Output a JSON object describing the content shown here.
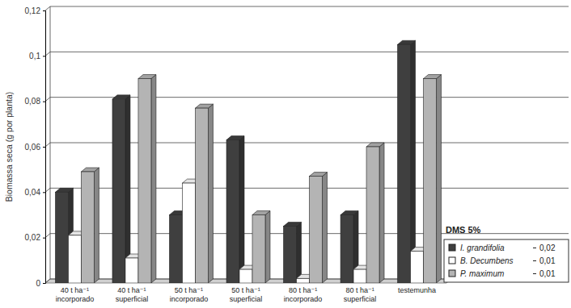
{
  "chart_data": {
    "type": "bar",
    "y_label": "Biomassa seca (g por planta)",
    "categories": [
      "40 t ha⁻¹ incorporado",
      "40 t ha⁻¹ superficial",
      "50 t ha⁻¹ incorporado",
      "50 t ha⁻¹ superficial",
      "80 t ha⁻¹ incorporado",
      "80 t ha⁻¹ superficial",
      "testemunha"
    ],
    "series": [
      {
        "name": "I. grandifolia",
        "color": "#3f3f3f",
        "values": [
          0.04,
          0.081,
          0.03,
          0.063,
          0.025,
          0.03,
          0.105
        ],
        "dms": 0.02,
        "dms_label": "0,02"
      },
      {
        "name": "B. Decumbens",
        "color": "#ffffff",
        "values": [
          0.021,
          0.011,
          0.044,
          0.006,
          0.002,
          0.006,
          0.014
        ],
        "dms": 0.01,
        "dms_label": "0,01"
      },
      {
        "name": "P. maximum",
        "color": "#b4b4b4",
        "values": [
          0.049,
          0.09,
          0.077,
          0.03,
          0.047,
          0.06,
          0.09
        ],
        "dms": 0.01,
        "dms_label": "0,01"
      }
    ],
    "annotation": "DMS 5%",
    "ylim": [
      0,
      0.12
    ],
    "yticks": [
      0,
      {
        "value": 0.02,
        "label": "0,02"
      },
      {
        "value": 0.04,
        "label": "0,04"
      },
      {
        "value": 0.06,
        "label": "0,06"
      },
      {
        "value": 0.08,
        "label": "0,08"
      },
      {
        "value": 0.1,
        "label": "0,1"
      },
      {
        "value": 0.12,
        "label": "0,12"
      }
    ],
    "grid": true,
    "legend": "lower right"
  }
}
